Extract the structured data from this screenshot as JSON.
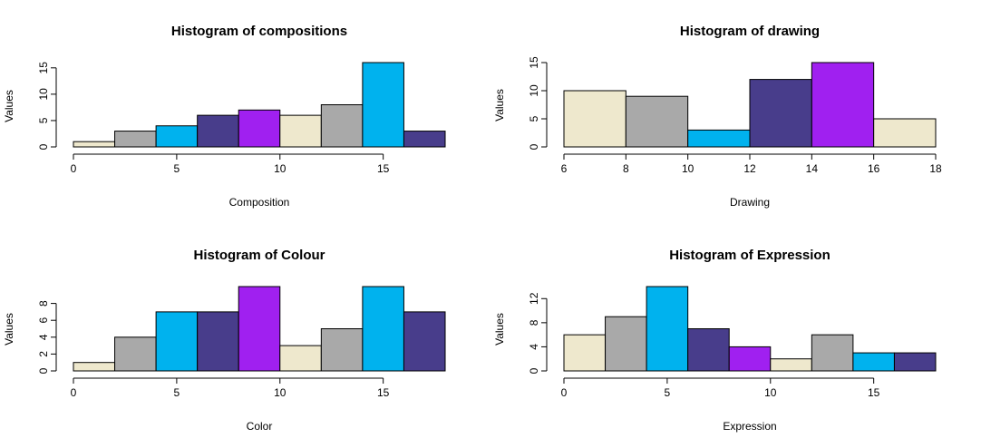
{
  "colors": {
    "cream": "#EEE8CD",
    "gray": "#A9A9A9",
    "sky": "#00B2EE",
    "slate": "#483D8B",
    "purple": "#A020F0"
  },
  "chart_data": [
    {
      "type": "bar",
      "title": "Histogram of compositions",
      "xlabel": "Composition",
      "ylabel": "Values",
      "breaks": [
        0,
        2,
        4,
        6,
        8,
        10,
        12,
        14,
        16,
        18
      ],
      "values": [
        1,
        3,
        4,
        6,
        7,
        6,
        8,
        16,
        3
      ],
      "bar_colors": [
        "cream",
        "gray",
        "sky",
        "slate",
        "purple",
        "cream",
        "gray",
        "sky",
        "slate"
      ],
      "xlim": [
        0,
        18
      ],
      "ylim": [
        0,
        16
      ],
      "xticks": [
        "0",
        "5",
        "10",
        "15"
      ],
      "yticks": [
        "0",
        "5",
        "10",
        "15"
      ],
      "grid": false
    },
    {
      "type": "bar",
      "title": "Histogram of drawing",
      "xlabel": "Drawing",
      "ylabel": "Values",
      "breaks": [
        6,
        8,
        10,
        12,
        14,
        16,
        18
      ],
      "values": [
        10,
        9,
        3,
        12,
        15,
        5
      ],
      "bar_colors": [
        "cream",
        "gray",
        "sky",
        "slate",
        "purple",
        "cream"
      ],
      "xlim": [
        6,
        18
      ],
      "ylim": [
        0,
        15
      ],
      "xticks": [
        "6",
        "8",
        "10",
        "12",
        "14",
        "16",
        "18"
      ],
      "yticks": [
        "0",
        "5",
        "10",
        "15"
      ],
      "grid": false
    },
    {
      "type": "bar",
      "title": "Histogram of Colour",
      "xlabel": "Color",
      "ylabel": "Values",
      "breaks": [
        0,
        2,
        4,
        6,
        8,
        10,
        12,
        14,
        16,
        18
      ],
      "values": [
        1,
        4,
        7,
        7,
        10,
        3,
        5,
        10,
        7
      ],
      "bar_colors": [
        "cream",
        "gray",
        "sky",
        "slate",
        "purple",
        "cream",
        "gray",
        "sky",
        "slate"
      ],
      "xlim": [
        0,
        18
      ],
      "ylim": [
        0,
        10
      ],
      "xticks": [
        "0",
        "5",
        "10",
        "15"
      ],
      "yticks": [
        "0",
        "2",
        "4",
        "6",
        "8"
      ],
      "grid": false
    },
    {
      "type": "bar",
      "title": "Histogram of Expression",
      "xlabel": "Expression",
      "ylabel": "Values",
      "breaks": [
        0,
        2,
        4,
        6,
        8,
        10,
        12,
        14,
        16,
        18
      ],
      "values": [
        6,
        9,
        14,
        7,
        4,
        2,
        6,
        3,
        3
      ],
      "bar_colors": [
        "cream",
        "gray",
        "sky",
        "slate",
        "purple",
        "cream",
        "gray",
        "sky",
        "slate"
      ],
      "xlim": [
        0,
        18
      ],
      "ylim": [
        0,
        14
      ],
      "xticks": [
        "0",
        "5",
        "10",
        "15"
      ],
      "yticks": [
        "0",
        "4",
        "8",
        "12"
      ],
      "grid": false
    }
  ]
}
